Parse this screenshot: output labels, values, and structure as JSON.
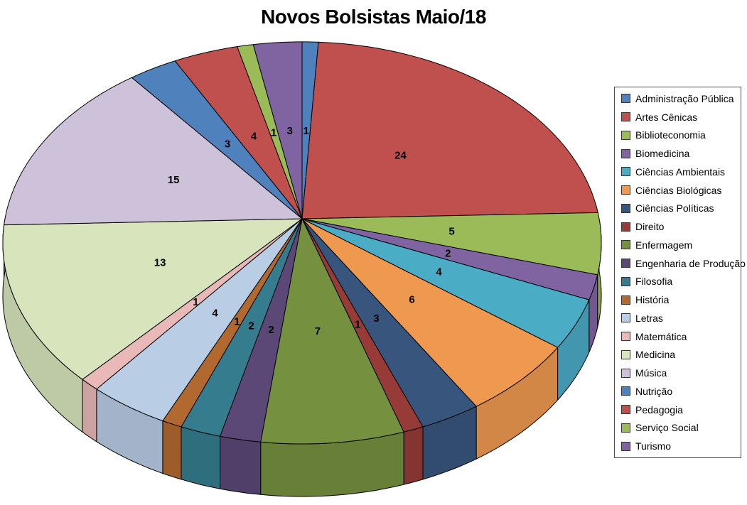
{
  "title": "Novos Bolsistas Maio/18",
  "chart_data": {
    "type": "pie",
    "style": "3d",
    "title": "Novos Bolsistas Maio/18",
    "start_angle_deg": 0,
    "direction": "clockwise",
    "total": 102,
    "data_labels": "value",
    "legend_position": "right",
    "background_color": "#ffffff",
    "categories": [
      "Administração Pública",
      "Artes Cênicas",
      "Biblioteconomia",
      "Biomedicina",
      "Ciências Ambientais",
      "Ciências Biológicas",
      "Ciências Políticas",
      "Direito",
      "Enfermagem",
      "Engenharia de Produção",
      "Filosofia",
      "História",
      "Letras",
      "Matemática",
      "Medicina",
      "Música",
      "Nutrição",
      "Pedagogia",
      "Serviço Social",
      "Turismo"
    ],
    "values": [
      1,
      24,
      5,
      2,
      4,
      6,
      3,
      1,
      7,
      2,
      2,
      1,
      4,
      1,
      13,
      15,
      3,
      4,
      1,
      3
    ],
    "colors": [
      "#4F81BD",
      "#C0504D",
      "#9BBB59",
      "#8064A2",
      "#4BACC6",
      "#EF9950",
      "#38567D",
      "#963B38",
      "#75903F",
      "#5B4876",
      "#357D8E",
      "#B2692F",
      "#B9CDE5",
      "#E8B9B8",
      "#D8E4BC",
      "#CDC2DA",
      "#4F81BD",
      "#C0504D",
      "#9BBB59",
      "#8064A2"
    ]
  }
}
